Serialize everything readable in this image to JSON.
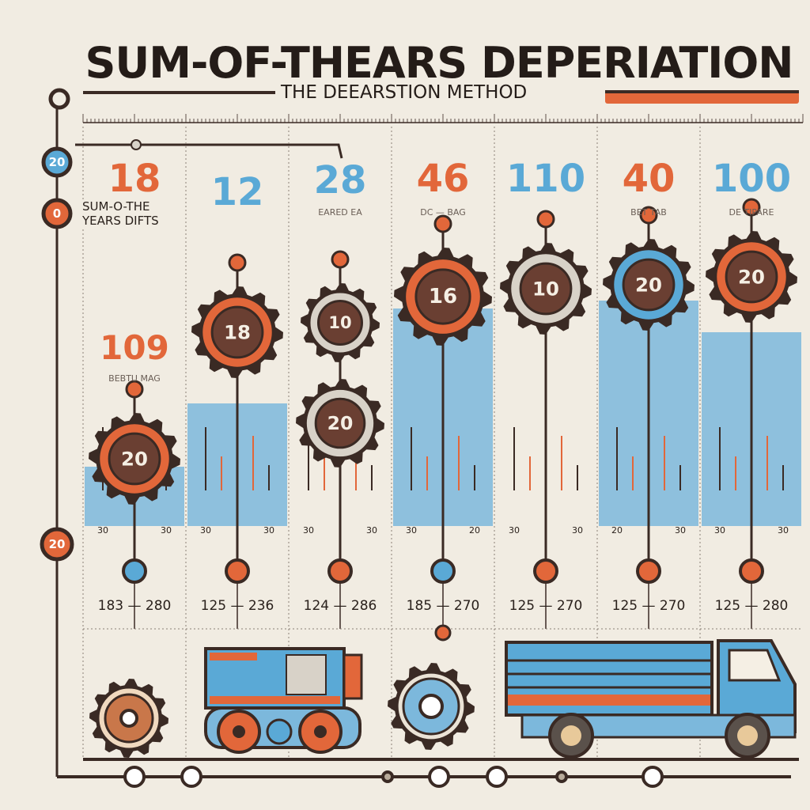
{
  "title": "SUM-OF-THEARS DEPERIATION",
  "subtitle": "THE DEEARSTION METHOD",
  "colors": {
    "orange": "#e2673a",
    "blue": "#5aa9d6",
    "dark": "#3a2a24",
    "gray": "#d8d2c8",
    "background": "#f1ece2"
  },
  "side_rail": [
    {
      "label": "20",
      "color": "#5aa9d6"
    },
    {
      "label": "0",
      "color": "#e2673a"
    },
    {
      "label": "20",
      "color": "#e2673a"
    }
  ],
  "side_label": "SUM-O-THE YEARS DIFTS",
  "columns": [
    {
      "top_number": "18",
      "top_color": "#e2673a",
      "sub_label": "",
      "second_number": "109",
      "second_label": "BEBTU MAG",
      "gears": [
        {
          "label": "20",
          "ring": "#e2673a"
        }
      ],
      "band": true,
      "left_value": "30",
      "right_value": "30",
      "node_color": "#5aa9d6",
      "range": "183 — 280"
    },
    {
      "top_number": "12",
      "top_color": "#5aa9d6",
      "sub_label": "",
      "gears": [
        {
          "label": "18",
          "ring": "#e2673a"
        }
      ],
      "band": true,
      "left_value": "30",
      "right_value": "30",
      "node_color": "#e2673a",
      "range": "125 — 236"
    },
    {
      "top_number": "28",
      "top_color": "#5aa9d6",
      "sub_label": "EARED EA",
      "gears": [
        {
          "label": "10",
          "ring": "#d8d2c8"
        },
        {
          "label": "20",
          "ring": "#d8d2c8"
        }
      ],
      "band": false,
      "left_value": "30",
      "right_value": "30",
      "node_color": "#e2673a",
      "range": "124 — 286"
    },
    {
      "top_number": "46",
      "top_color": "#e2673a",
      "sub_label": "DC — BAG",
      "gears": [
        {
          "label": "16",
          "ring": "#e2673a"
        }
      ],
      "band": true,
      "left_value": "30",
      "right_value": "20",
      "node_color": "#5aa9d6",
      "range": "185 — 270"
    },
    {
      "top_number": "110",
      "top_color": "#5aa9d6",
      "sub_label": "",
      "gears": [
        {
          "label": "10",
          "ring": "#d8d2c8"
        }
      ],
      "band": false,
      "left_value": "30",
      "right_value": "30",
      "node_color": "#e2673a",
      "range": "125 — 270"
    },
    {
      "top_number": "40",
      "top_color": "#e2673a",
      "sub_label": "BET TAB",
      "gears": [
        {
          "label": "20",
          "ring": "#5aa9d6"
        }
      ],
      "band": true,
      "left_value": "20",
      "right_value": "30",
      "node_color": "#e2673a",
      "range": "125 — 270"
    },
    {
      "top_number": "100",
      "top_color": "#5aa9d6",
      "sub_label": "DE TIPARE",
      "gears": [
        {
          "label": "20",
          "ring": "#e2673a"
        }
      ],
      "band": true,
      "left_value": "30",
      "right_value": "30",
      "node_color": "#e2673a",
      "range": "125 — 280"
    }
  ]
}
